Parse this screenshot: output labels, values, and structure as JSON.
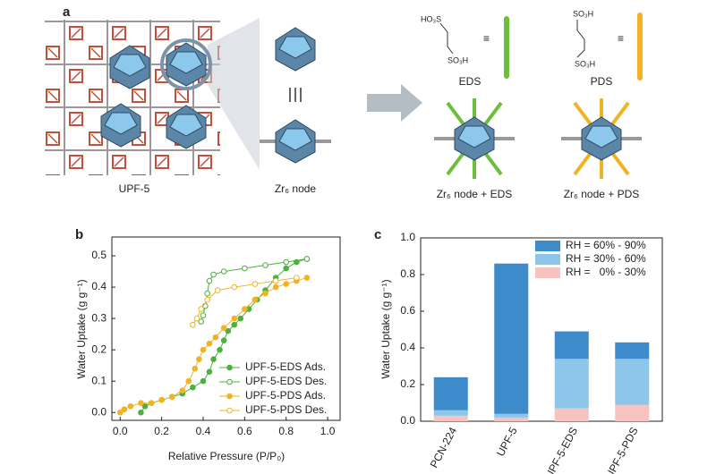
{
  "diagram": {
    "panel_label": "a",
    "labels": {
      "upf5": "UPF-5",
      "node": "Zr₆ node",
      "eds": "EDS",
      "pds": "PDS",
      "node_eds": "Zr₆ node + EDS",
      "node_pds": "Zr₆ node + PDS"
    },
    "formulas": {
      "eds_top": "HO₃S",
      "eds_bottom": "SO₃H",
      "pds_top": "SO₃H",
      "pds_bottom": "SO₃H"
    }
  },
  "chart_data": [
    {
      "type": "scatter",
      "panel_label": "b",
      "x_label": "Relative Pressure (P/P₀)",
      "y_label": "Water Uptake (g g⁻¹)",
      "xlim": [
        -0.04,
        1.06
      ],
      "ylim": [
        -0.025,
        0.56
      ],
      "xticks": [
        {
          "value": 0,
          "label": "0.0"
        },
        0.2,
        0.4,
        0.6,
        0.8,
        {
          "value": 1,
          "label": "1.0"
        }
      ],
      "yticks": [
        {
          "value": 0,
          "label": "0.0"
        },
        0.1,
        0.2,
        0.3,
        0.4,
        0.5
      ],
      "series": [
        {
          "name": "UPF-5-EDS Ads.",
          "color": "#4cb140",
          "filled": true,
          "x": [
            0.1,
            0.12,
            0.15,
            0.2,
            0.25,
            0.3,
            0.35,
            0.4,
            0.43,
            0.45,
            0.48,
            0.5,
            0.52,
            0.55,
            0.58,
            0.62,
            0.66,
            0.7,
            0.75,
            0.8,
            0.85,
            0.9
          ],
          "values": [
            0.0,
            0.02,
            0.03,
            0.04,
            0.05,
            0.06,
            0.08,
            0.1,
            0.13,
            0.17,
            0.2,
            0.23,
            0.26,
            0.28,
            0.3,
            0.33,
            0.36,
            0.39,
            0.43,
            0.46,
            0.48,
            0.49
          ]
        },
        {
          "name": "UPF-5-EDS Des.",
          "color": "#4cb140",
          "filled": false,
          "x": [
            0.9,
            0.8,
            0.7,
            0.6,
            0.5,
            0.45,
            0.43,
            0.42,
            0.41,
            0.4,
            0.39
          ],
          "values": [
            0.49,
            0.48,
            0.47,
            0.46,
            0.45,
            0.44,
            0.42,
            0.38,
            0.34,
            0.31,
            0.29
          ]
        },
        {
          "name": "UPF-5-PDS Ads.",
          "color": "#f0b323",
          "filled": true,
          "x": [
            0.0,
            0.02,
            0.05,
            0.1,
            0.15,
            0.2,
            0.25,
            0.3,
            0.33,
            0.36,
            0.38,
            0.4,
            0.43,
            0.46,
            0.5,
            0.55,
            0.6,
            0.65,
            0.7,
            0.75,
            0.8,
            0.85,
            0.9
          ],
          "values": [
            0.0,
            0.01,
            0.02,
            0.03,
            0.03,
            0.04,
            0.05,
            0.07,
            0.1,
            0.14,
            0.17,
            0.2,
            0.22,
            0.24,
            0.27,
            0.3,
            0.33,
            0.36,
            0.38,
            0.4,
            0.41,
            0.42,
            0.43
          ]
        },
        {
          "name": "UPF-5-PDS Des.",
          "color": "#f0b323",
          "filled": false,
          "x": [
            0.85,
            0.75,
            0.65,
            0.55,
            0.47,
            0.42,
            0.39,
            0.37,
            0.35
          ],
          "values": [
            0.43,
            0.42,
            0.41,
            0.4,
            0.39,
            0.36,
            0.33,
            0.3,
            0.28
          ]
        }
      ]
    },
    {
      "type": "stacked_bar",
      "panel_label": "c",
      "y_label": "Water Uptake (g g⁻¹)",
      "categories": [
        "PCN-224",
        "UPF-5",
        "UPF-5-EDS",
        "UPF-5-PDS"
      ],
      "ylim": [
        0,
        1
      ],
      "yticks": [
        {
          "value": 0,
          "label": "0.0"
        },
        0.2,
        0.4,
        0.6,
        0.8,
        {
          "value": 1,
          "label": "1.0"
        }
      ],
      "series": [
        {
          "name": "RH =   0% - 30%",
          "color": "#f6c3be",
          "values": [
            0.03,
            0.02,
            0.07,
            0.09
          ]
        },
        {
          "name": "RH = 30% - 60%",
          "color": "#8ec6ea",
          "values": [
            0.03,
            0.02,
            0.27,
            0.25
          ]
        },
        {
          "name": "RH = 60% - 90%",
          "color": "#3d8bcb",
          "values": [
            0.18,
            0.82,
            0.15,
            0.09
          ]
        }
      ]
    }
  ]
}
